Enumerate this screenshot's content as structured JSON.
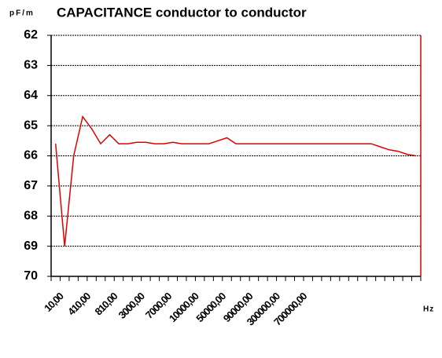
{
  "chart_data": {
    "type": "line",
    "title": "CAPACITANCE conductor to conductor",
    "y_label": "pF/m",
    "x_label": "Hz",
    "categories": [
      "10,00",
      null,
      null,
      "410,00",
      null,
      null,
      "810,00",
      null,
      null,
      "3000,00",
      null,
      null,
      "7000,00",
      null,
      null,
      "10000,00",
      null,
      null,
      "50000,00",
      null,
      null,
      "90000,00",
      null,
      null,
      "300000,00",
      null,
      null,
      "700000,00",
      null,
      null,
      null,
      null,
      null,
      null,
      null,
      null,
      null,
      null,
      null,
      null,
      null
    ],
    "series": [
      {
        "name": "capacitance",
        "color": "#e00000",
        "values": [
          65.6,
          69.0,
          66.0,
          64.7,
          65.1,
          65.6,
          65.3,
          65.6,
          65.6,
          65.55,
          65.55,
          65.6,
          65.6,
          65.55,
          65.6,
          65.6,
          65.6,
          65.6,
          65.5,
          65.4,
          65.6,
          65.6,
          65.6,
          65.6,
          65.6,
          65.6,
          65.6,
          65.6,
          65.6,
          65.6,
          65.6,
          65.6,
          65.6,
          65.6,
          65.6,
          65.6,
          65.7,
          65.8,
          65.85,
          65.95,
          66.0
        ]
      }
    ],
    "ylim": [
      62,
      70
    ],
    "yticks": [
      62,
      63,
      64,
      65,
      66,
      67,
      68,
      69,
      70
    ],
    "y_inverted": true,
    "grid": true
  }
}
